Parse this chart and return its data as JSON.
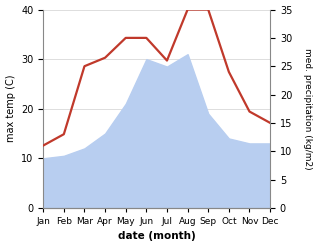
{
  "months": [
    "Jan",
    "Feb",
    "Mar",
    "Apr",
    "May",
    "Jun",
    "Jul",
    "Aug",
    "Sep",
    "Oct",
    "Nov",
    "Dec"
  ],
  "max_temp": [
    10.0,
    10.5,
    12.0,
    15.0,
    21.0,
    30.0,
    28.5,
    31.0,
    19.0,
    14.0,
    13.0,
    13.0
  ],
  "precipitation": [
    11.0,
    13.0,
    25.0,
    26.5,
    30.0,
    30.0,
    26.0,
    35.0,
    35.0,
    24.0,
    17.0,
    15.0
  ],
  "temp_fill_color": "#b8cef0",
  "precip_color": "#c0392b",
  "temp_ylim": [
    0,
    40
  ],
  "precip_ylim": [
    0,
    35
  ],
  "temp_yticks": [
    0,
    10,
    20,
    30,
    40
  ],
  "precip_yticks": [
    0,
    5,
    10,
    15,
    20,
    25,
    30,
    35
  ],
  "ylabel_left": "max temp (C)",
  "ylabel_right": "med. precipitation (kg/m2)",
  "xlabel": "date (month)",
  "bg_color": "#ffffff",
  "grid_color": "#d0d0d0",
  "spine_color": "#888888"
}
